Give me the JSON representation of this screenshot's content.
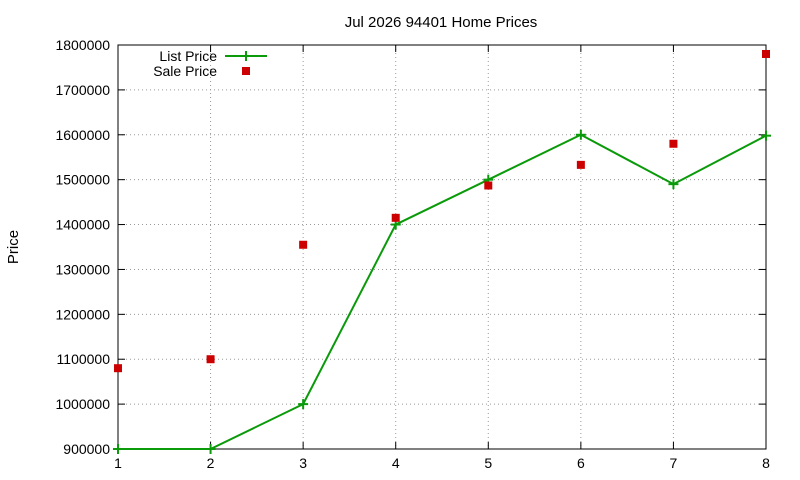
{
  "chart_data": {
    "type": "line",
    "title": "Jul 2026 94401 Home Prices",
    "xlabel": "",
    "ylabel": "Price",
    "x": [
      1,
      2,
      3,
      4,
      5,
      6,
      7,
      8
    ],
    "xlim": [
      1,
      8
    ],
    "ylim": [
      900000,
      1800000
    ],
    "yticks": [
      900000,
      1000000,
      1100000,
      1200000,
      1300000,
      1400000,
      1500000,
      1600000,
      1700000,
      1800000
    ],
    "xticks": [
      1,
      2,
      3,
      4,
      5,
      6,
      7,
      8
    ],
    "grid": true,
    "legend_position": "top-left",
    "series": [
      {
        "name": "List Price",
        "style": "line+cross",
        "color": "#0a9a0a",
        "values": [
          900000,
          900000,
          1000000,
          1400000,
          1500000,
          1600000,
          1490000,
          1598000
        ]
      },
      {
        "name": "Sale Price",
        "style": "square",
        "color": "#cc0000",
        "values": [
          1080000,
          1100000,
          1355000,
          1415000,
          1487000,
          1533000,
          1580000,
          1780000
        ]
      }
    ]
  }
}
